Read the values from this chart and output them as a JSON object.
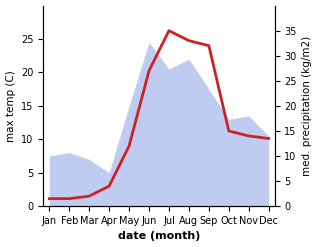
{
  "months": [
    "Jan",
    "Feb",
    "Mar",
    "Apr",
    "May",
    "Jun",
    "Jul",
    "Aug",
    "Sep",
    "Oct",
    "Nov",
    "Dec"
  ],
  "temperature": [
    1.5,
    1.5,
    2.0,
    4.0,
    12.0,
    27.0,
    35.0,
    33.0,
    32.0,
    15.0,
    14.0,
    13.5
  ],
  "precipitation": [
    7.5,
    8.0,
    7.0,
    5.0,
    15.0,
    24.5,
    20.5,
    22.0,
    17.5,
    13.0,
    13.5,
    10.5
  ],
  "temp_color": "#cc2222",
  "precip_fill_color": "#aabbee",
  "precip_fill_alpha": 0.75,
  "left_ylim": [
    0,
    30
  ],
  "right_ylim": [
    0,
    40
  ],
  "left_yticks": [
    0,
    5,
    10,
    15,
    20,
    25
  ],
  "right_yticks": [
    0,
    5,
    10,
    15,
    20,
    25,
    30,
    35
  ],
  "xlabel": "date (month)",
  "ylabel_left": "max temp (C)",
  "ylabel_right": "med. precipitation (kg/m2)",
  "bg_color": "#ffffff",
  "line_width": 2.0,
  "xlabel_fontsize": 8,
  "ylabel_fontsize": 7.5,
  "tick_fontsize": 7
}
